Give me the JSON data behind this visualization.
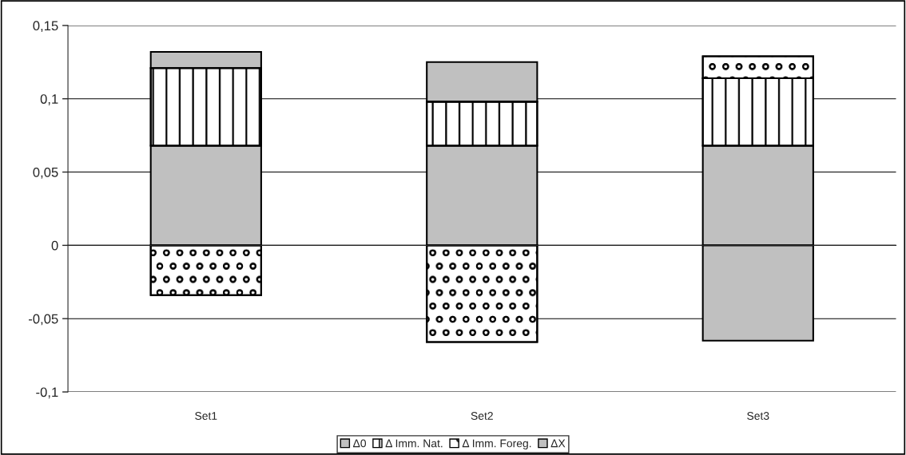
{
  "chart_data": {
    "type": "bar",
    "stacked": true,
    "categories": [
      "Set1",
      "Set2",
      "Set3"
    ],
    "series": [
      {
        "name": "Δ0",
        "color": "#c0c0c0",
        "values": [
          0.068,
          0.068,
          0.068
        ]
      },
      {
        "name": "Δ Imm. Nat.",
        "color": "#000000",
        "values": [
          0.053,
          0.03,
          0.046
        ]
      },
      {
        "name": "Δ Imm. Foreg.",
        "color": "#000000",
        "values": [
          -0.034,
          -0.066,
          0.015
        ]
      },
      {
        "name": "ΔX",
        "color": "#c0c0c0",
        "values": [
          0.011,
          0.027,
          -0.065
        ]
      }
    ],
    "ylim": [
      -0.1,
      0.15
    ],
    "yticks": [
      {
        "value": -0.1,
        "label": "-0,1"
      },
      {
        "value": -0.05,
        "label": "-0,05"
      },
      0,
      {
        "value": 0.05,
        "label": "0,05"
      },
      {
        "value": 0.1,
        "label": "0,1"
      },
      {
        "value": 0.15,
        "label": "0,15"
      }
    ],
    "grid": "y",
    "legend": "bottom"
  }
}
